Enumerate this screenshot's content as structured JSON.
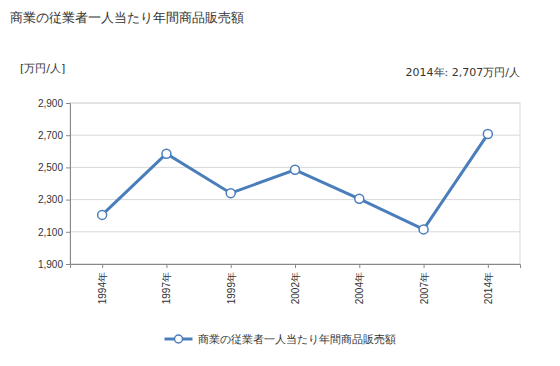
{
  "chart_data": {
    "type": "line",
    "title": "商業の従業者一人当たり年間商品販売額",
    "y_label": "[万円/人]",
    "annotation": "2014年: 2,707万円/人",
    "categories": [
      "1994年",
      "1997年",
      "1999年",
      "2002年",
      "2004年",
      "2007年",
      "2014年"
    ],
    "series": [
      {
        "name": "商業の従業者一人当たり年間商品販売額",
        "color": "#4a7ebb",
        "marker": "circle",
        "values": [
          2205,
          2585,
          2340,
          2485,
          2305,
          2115,
          2707
        ]
      }
    ],
    "ylim": [
      1900,
      2900
    ],
    "yticks": [
      {
        "value": 1900,
        "label": "1,900"
      },
      {
        "value": 2100,
        "label": "2,100"
      },
      {
        "value": 2300,
        "label": "2,300"
      },
      {
        "value": 2500,
        "label": "2,500"
      },
      {
        "value": 2700,
        "label": "2,700"
      },
      {
        "value": 2900,
        "label": "2,900"
      }
    ],
    "grid": true,
    "legend": "bottom"
  }
}
